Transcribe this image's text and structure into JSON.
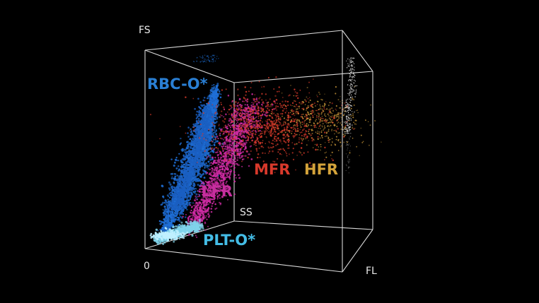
{
  "chart_data": {
    "type": "scatter",
    "projection": "3d",
    "axes": {
      "vertical": "FS",
      "depth": "SS",
      "horizontal": "FL",
      "origin": "0"
    },
    "grid": false,
    "legend": "none",
    "background": "#000000",
    "series": [
      {
        "name": "RBC-O*",
        "color": "#1f6fd6",
        "label_color": "#2a7fd4"
      },
      {
        "name": "LFR",
        "color": "#d22ca6",
        "label_color": "#c62f9e"
      },
      {
        "name": "MFR",
        "color": "#d83a2a",
        "label_color": "#d8392b"
      },
      {
        "name": "HFR",
        "color": "#d8a23c",
        "label_color": "#d4a33a"
      },
      {
        "name": "PLT-O*",
        "color": "#7fd3ea",
        "label_color": "#44bde6"
      }
    ]
  }
}
